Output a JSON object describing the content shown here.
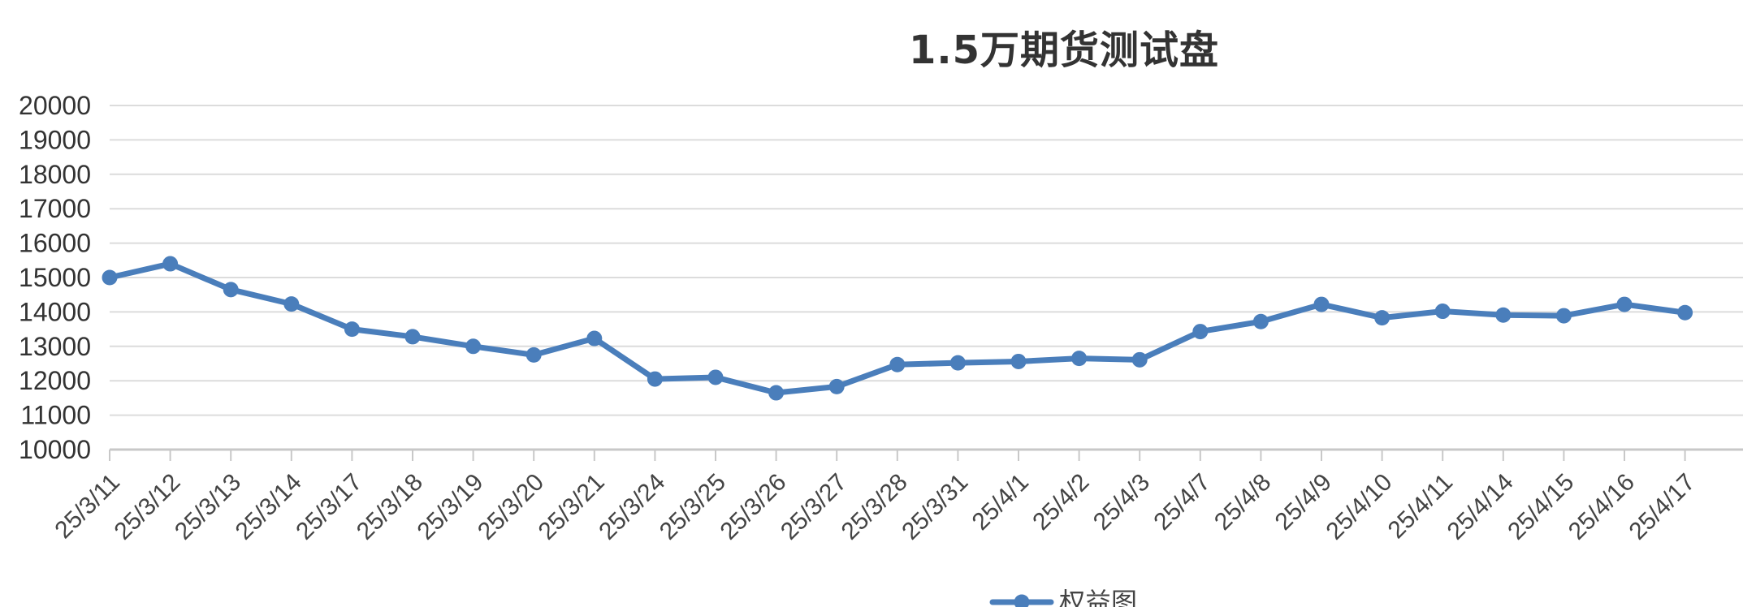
{
  "chart_data": {
    "type": "line",
    "title": "1.5万期货测试盘",
    "xlabel": "",
    "ylabel": "",
    "ylim": [
      10000,
      20000
    ],
    "yticks": [
      "20000",
      "19000",
      "18000",
      "17000",
      "16000",
      "15000",
      "14000",
      "13000",
      "12000",
      "11000",
      "10000"
    ],
    "categories": [
      "25/3/11",
      "25/3/12",
      "25/3/13",
      "25/3/14",
      "25/3/17",
      "25/3/18",
      "25/3/19",
      "25/3/20",
      "25/3/21",
      "25/3/24",
      "25/3/25",
      "25/3/26",
      "25/3/27",
      "25/3/28",
      "25/3/31",
      "25/4/1",
      "25/4/2",
      "25/4/3",
      "25/4/7",
      "25/4/8",
      "25/4/9",
      "25/4/10",
      "25/4/11",
      "25/4/14",
      "25/4/15",
      "25/4/16",
      "25/4/17"
    ],
    "series": [
      {
        "name": "权益图",
        "color": "#4a7ebb",
        "values": [
          15000,
          15400,
          14650,
          14230,
          13500,
          13280,
          13000,
          12750,
          13230,
          12050,
          12100,
          11650,
          11830,
          12470,
          12520,
          12560,
          12650,
          12610,
          13430,
          13720,
          14220,
          13830,
          14020,
          13910,
          13890,
          14220,
          13980
        ]
      }
    ],
    "grid": true,
    "legend_position": "bottom-center"
  }
}
